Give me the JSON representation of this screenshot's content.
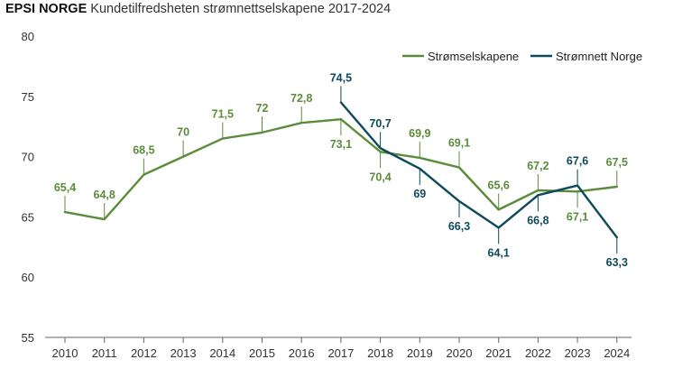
{
  "header": {
    "brand": "EPSI NORGE",
    "subtitle": "Kundetilfredsheten strømnettselskapene 2017-2024"
  },
  "chart_data": {
    "type": "line",
    "title": "EPSI NORGE Kundetilfredsheten strømnettselskapene 2017-2024",
    "xlabel": "",
    "ylabel": "",
    "ylim": [
      55,
      80
    ],
    "yticks": [
      55,
      60,
      65,
      70,
      75,
      80
    ],
    "grid": false,
    "legend_position": "top-right",
    "x": [
      2010,
      2011,
      2012,
      2013,
      2014,
      2015,
      2016,
      2017,
      2018,
      2019,
      2020,
      2021,
      2022,
      2023,
      2024
    ],
    "series": [
      {
        "name": "Strømselskapene",
        "color": "#5b8c3a",
        "x": [
          2010,
          2011,
          2012,
          2013,
          2014,
          2015,
          2016,
          2017,
          2018,
          2019,
          2020,
          2021,
          2022,
          2023,
          2024
        ],
        "values": [
          65.4,
          64.8,
          68.5,
          70,
          71.5,
          72,
          72.8,
          73.1,
          70.4,
          69.9,
          69.1,
          65.6,
          67.2,
          67.1,
          67.5
        ],
        "labels": [
          "65,4",
          "64,8",
          "68,5",
          "70",
          "71,5",
          "72",
          "72,8",
          "73,1",
          "70,4",
          "69,9",
          "69,1",
          "65,6",
          "67,2",
          "67,1",
          "67,5"
        ],
        "label_side": [
          "up",
          "up",
          "up",
          "up",
          "up",
          "up",
          "up",
          "down",
          "down",
          "up",
          "up",
          "up",
          "up",
          "down",
          "up"
        ]
      },
      {
        "name": "Strømnett Norge",
        "color": "#0d4a5c",
        "x": [
          2017,
          2018,
          2019,
          2020,
          2021,
          2022,
          2023,
          2024
        ],
        "values": [
          74.5,
          70.7,
          69,
          66.3,
          64.1,
          66.8,
          67.6,
          63.3
        ],
        "labels": [
          "74,5",
          "70,7",
          "69",
          "66,3",
          "64,1",
          "66,8",
          "67,6",
          "63,3"
        ],
        "label_side": [
          "up",
          "up",
          "down",
          "down",
          "down",
          "down",
          "up",
          "down"
        ]
      }
    ]
  }
}
